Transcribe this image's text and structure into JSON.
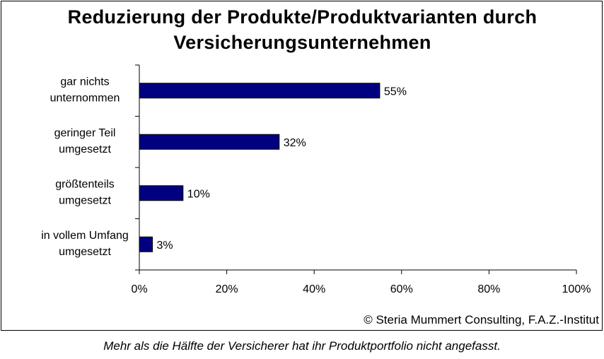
{
  "chart_data": {
    "type": "bar",
    "orientation": "horizontal",
    "title_lines": [
      "Reduzierung der Produkte/Produktvarianten durch",
      "Versicherungsunternehmen"
    ],
    "categories": [
      [
        "gar nichts",
        "unternommen"
      ],
      [
        "geringer Teil",
        "umgesetzt"
      ],
      [
        "größtenteils",
        "umgesetzt"
      ],
      [
        "in vollem Umfang",
        "umgesetzt"
      ]
    ],
    "values": [
      55,
      32,
      10,
      3
    ],
    "value_labels": [
      "55%",
      "32%",
      "10%",
      "3%"
    ],
    "xlim": [
      0,
      100
    ],
    "xticks": [
      0,
      20,
      40,
      60,
      80,
      100
    ],
    "xtick_labels": [
      "0%",
      "20%",
      "40%",
      "60%",
      "80%",
      "100%"
    ],
    "bar_color": "#000080",
    "grid": false,
    "legend": "none"
  },
  "source": "© Steria Mummert Consulting, F.A.Z.-Institut",
  "caption": "Mehr als die Hälfte der Versicherer hat ihr Produktportfolio nicht angefasst."
}
